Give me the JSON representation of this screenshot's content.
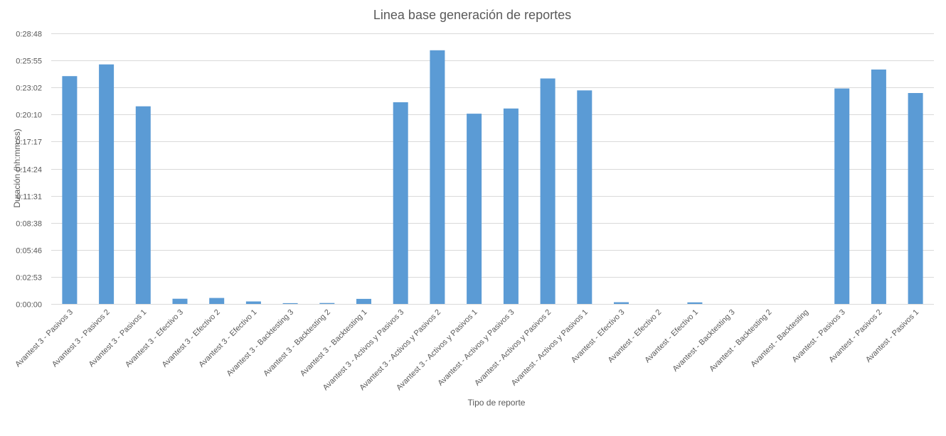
{
  "chart_data": {
    "type": "bar",
    "title": "Linea base generación de reportes",
    "xlabel": "Tipo de reporte",
    "ylabel": "Duración (hh:mm:ss)",
    "ylim": [
      0,
      1728
    ],
    "y_ticks": [
      {
        "value": 0,
        "label": "0:00:00"
      },
      {
        "value": 173,
        "label": "0:02:53"
      },
      {
        "value": 346,
        "label": "0:05:46"
      },
      {
        "value": 518,
        "label": "0:08:38"
      },
      {
        "value": 691,
        "label": "0:11:31"
      },
      {
        "value": 864,
        "label": "0:14:24"
      },
      {
        "value": 1037,
        "label": "0:17:17"
      },
      {
        "value": 1210,
        "label": "0:20:10"
      },
      {
        "value": 1382,
        "label": "0:23:02"
      },
      {
        "value": 1555,
        "label": "0:25:55"
      },
      {
        "value": 1728,
        "label": "0:28:48"
      }
    ],
    "grid": true,
    "legend": "none",
    "bar_color": "#5b9bd5",
    "categories": [
      "Avantest 3 - Pasivos 3",
      "Avantest 3 - Pasivos 2",
      "Avantest 3 - Pasivos 1",
      "Avantest 3 - Efectivo 3",
      "Avantest 3 - Efectivo 2",
      "Avantest 3 - Efectivo 1",
      "Avantest 3 - Backtesting 3",
      "Avantest 3 - Backtesting 2",
      "Avantest 3 - Backtesting 1",
      "Avantest 3 - Activos y Pasivos 3",
      "Avantest 3 - Activos y Pasivos 2",
      "Avantest 3 - Activos y Pasivos 1",
      "Avantest - Activos y Pasivos 3",
      "Avantest - Activos y Pasivos 2",
      "Avantest - Activos y Pasivos 1",
      "Avantest - Efectivo 3",
      "Avantest - Efectivo 2",
      "Avantest - Efectivo 1",
      "Avantest - Backtesting 3",
      "Avantest - Backtesting 2",
      "Avantest - Backtesting",
      "Avantest - Pasivos 3",
      "Avantest - Pasivos 2",
      "Avantest - Pasivos 1"
    ],
    "values": [
      1455,
      1530,
      1262,
      33,
      38,
      16,
      5,
      6,
      32,
      1288,
      1620,
      1215,
      1248,
      1440,
      1364,
      11,
      0,
      10,
      0,
      0,
      0,
      1376,
      1497,
      1347
    ]
  }
}
